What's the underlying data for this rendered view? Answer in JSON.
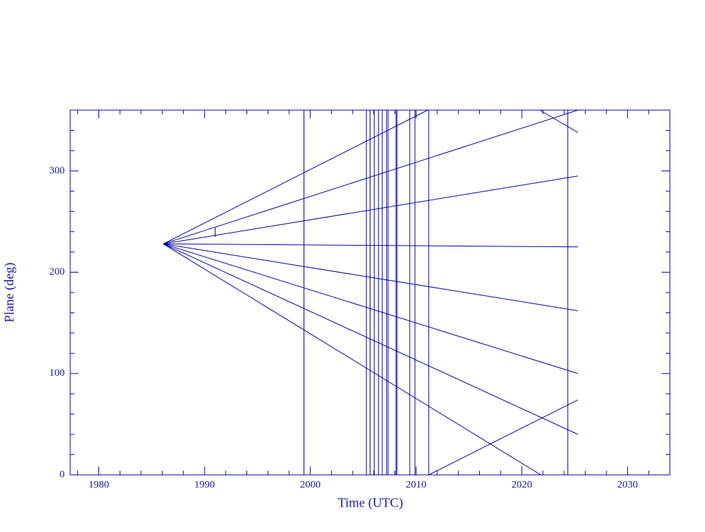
{
  "chart_data": {
    "type": "line",
    "xlabel": "Time (UTC)",
    "ylabel": "Plane (deg)",
    "xlim": [
      1977.3,
      2034
    ],
    "ylim": [
      0,
      360
    ],
    "xticks": [
      1980,
      1990,
      2000,
      2010,
      2020,
      2030
    ],
    "yticks": [
      0,
      100,
      200,
      300
    ],
    "xminorticks": [
      1978,
      1982,
      1984,
      1986,
      1988,
      1992,
      1994,
      1996,
      1998,
      2002,
      2004,
      2006,
      2008,
      2012,
      2014,
      2016,
      2018,
      2022,
      2024,
      2026,
      2028,
      2032
    ],
    "yminorticks": [
      20,
      40,
      60,
      80,
      120,
      140,
      160,
      180,
      220,
      240,
      260,
      280,
      320,
      340
    ],
    "color": "#00009c",
    "series": [
      {
        "x": [
          1986.1,
          2011.1
        ],
        "values": [
          228,
          360
        ]
      },
      {
        "x": [
          1986.1,
          2025.3
        ],
        "values": [
          228,
          360
        ]
      },
      {
        "x": [
          1986.1,
          2025.3
        ],
        "values": [
          228,
          295
        ]
      },
      {
        "x": [
          1986.1,
          2025.3
        ],
        "values": [
          228,
          225
        ]
      },
      {
        "x": [
          1986.1,
          2025.3
        ],
        "values": [
          228,
          162
        ]
      },
      {
        "x": [
          1986.1,
          2025.3
        ],
        "values": [
          228,
          100
        ]
      },
      {
        "x": [
          1986.1,
          2025.3
        ],
        "values": [
          228,
          40
        ]
      },
      {
        "x": [
          1986.1,
          2021.8
        ],
        "values": [
          228,
          0
        ]
      },
      {
        "x": [
          2011.2,
          2025.3
        ],
        "values": [
          0,
          74
        ]
      },
      {
        "x": [
          2021.7,
          2025.3
        ],
        "values": [
          360,
          338
        ]
      },
      {
        "x": [
          1991.0,
          1991.0
        ],
        "values": [
          235,
          244
        ]
      }
    ],
    "vlines": [
      1999.4,
      2005.3,
      2005.65,
      2006.05,
      2006.45,
      2006.8,
      2007.2,
      2007.35,
      2008.1,
      2008.2,
      2009.4,
      2009.9,
      2011.2,
      2024.35
    ]
  }
}
